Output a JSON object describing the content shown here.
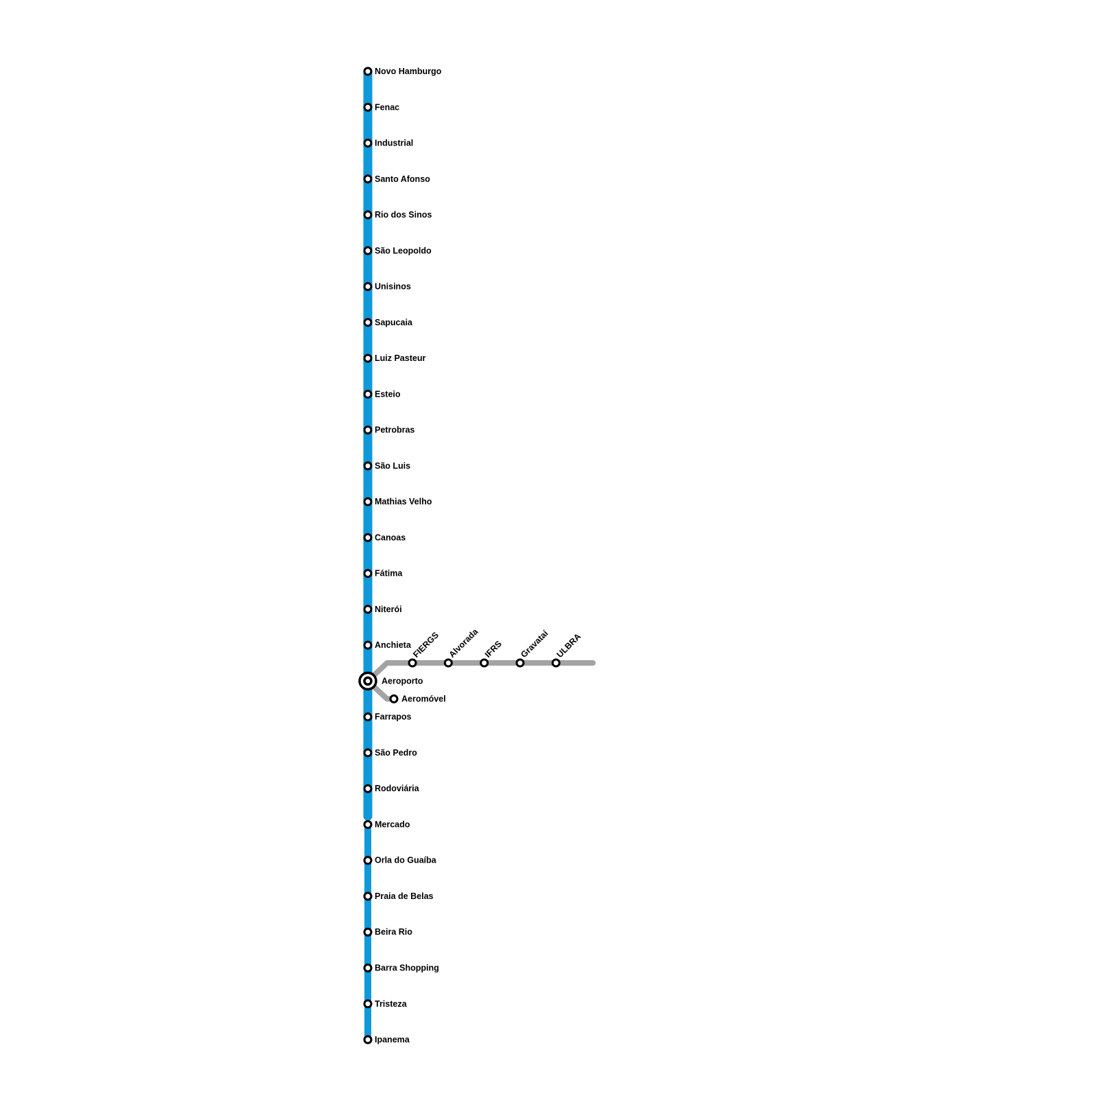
{
  "colors": {
    "main_line": "#0f99d9",
    "aeromovel_line": "#a3a3a3",
    "station": "#000000"
  },
  "main_line": {
    "stations": [
      "Novo Hamburgo",
      "Fenac",
      "Industrial",
      "Santo Afonso",
      "Rio dos Sinos",
      "São Leopoldo",
      "Unisinos",
      "Sapucaia",
      "Luiz Pasteur",
      "Esteio",
      "Petrobras",
      "São Luis",
      "Mathias Velho",
      "Canoas",
      "Fátima",
      "Niterói",
      "Anchieta",
      "Aeroporto",
      "Farrapos",
      "São Pedro",
      "Rodoviária",
      "Mercado",
      "Orla do Guaíba",
      "Praia de Belas",
      "Beira Rio",
      "Barra Shopping",
      "Tristeza",
      "Ipanema"
    ],
    "interchange": "Aeroporto"
  },
  "branch_line": {
    "stations": [
      "FIERGS",
      "Alvorada",
      "IFRS",
      "Gravataí",
      "ULBRA"
    ]
  },
  "aeromovel": {
    "station": "Aeromóvel"
  }
}
